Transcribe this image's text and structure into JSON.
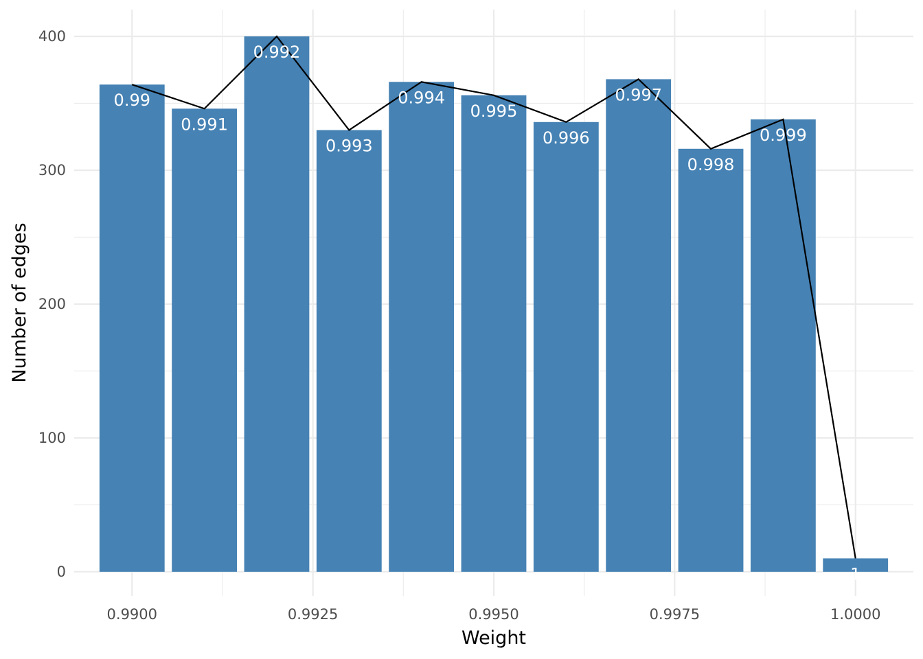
{
  "chart_data": {
    "type": "bar",
    "title": "",
    "xlabel": "Weight",
    "ylabel": "Number of edges",
    "x": [
      0.99,
      0.991,
      0.992,
      0.993,
      0.994,
      0.995,
      0.996,
      0.997,
      0.998,
      0.999,
      1.0
    ],
    "values": [
      364,
      346,
      400,
      330,
      366,
      356,
      336,
      368,
      316,
      338,
      10
    ],
    "data_labels": [
      "0.99",
      "0.991",
      "0.992",
      "0.993",
      "0.994",
      "0.995",
      "0.996",
      "0.997",
      "0.998",
      "0.999",
      "1"
    ],
    "line_overlay": true,
    "xlim": [
      0.9892,
      1.0008
    ],
    "ylim": [
      -18,
      420
    ],
    "x_ticks": [
      {
        "value": 0.99,
        "label": "0.9900"
      },
      {
        "value": 0.9925,
        "label": "0.9925"
      },
      {
        "value": 0.995,
        "label": "0.9950"
      },
      {
        "value": 0.9975,
        "label": "0.9975"
      },
      {
        "value": 1.0,
        "label": "1.0000"
      }
    ],
    "y_ticks": [
      {
        "value": 0,
        "label": "0"
      },
      {
        "value": 100,
        "label": "100"
      },
      {
        "value": 200,
        "label": "200"
      },
      {
        "value": 300,
        "label": "300"
      },
      {
        "value": 400,
        "label": "400"
      }
    ],
    "grid": true,
    "bar_color": "#4682b4",
    "line_color": "#000000",
    "grid_color": "#ebebeb"
  }
}
